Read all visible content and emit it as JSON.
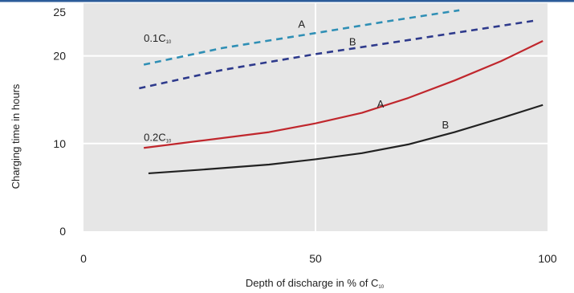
{
  "chart_data": {
    "type": "line",
    "xlabel": "Depth of discharge in % of C₁₀",
    "xlabel_main": "Depth of discharge in % of C",
    "xlabel_sub": "10",
    "ylabel": "Charging time in hours",
    "xlim": [
      0,
      100
    ],
    "ylim": [
      0,
      25
    ],
    "x_ticks": [
      0,
      50,
      100
    ],
    "y_ticks": [
      0,
      10,
      20,
      25
    ],
    "grid": true,
    "series": [
      {
        "id": "s01A",
        "group": "0.1C₁₀",
        "curve": "A",
        "style": "dashed",
        "color": "#2f8fb5",
        "points": [
          [
            13,
            19.0
          ],
          [
            30,
            20.9
          ],
          [
            50,
            22.6
          ],
          [
            65,
            23.9
          ],
          [
            81,
            25.2
          ]
        ]
      },
      {
        "id": "s01B",
        "group": "0.1C₁₀",
        "curve": "B",
        "style": "dashed",
        "color": "#2e3a8c",
        "points": [
          [
            12,
            16.3
          ],
          [
            30,
            18.4
          ],
          [
            50,
            20.2
          ],
          [
            70,
            21.8
          ],
          [
            97,
            24.0
          ]
        ]
      },
      {
        "id": "s02A",
        "group": "0.2C₁₀",
        "curve": "A",
        "style": "solid",
        "color": "#c0272d",
        "points": [
          [
            13,
            9.5
          ],
          [
            25,
            10.3
          ],
          [
            40,
            11.3
          ],
          [
            50,
            12.3
          ],
          [
            60,
            13.5
          ],
          [
            70,
            15.2
          ],
          [
            80,
            17.2
          ],
          [
            90,
            19.4
          ],
          [
            99,
            21.7
          ]
        ]
      },
      {
        "id": "s02B",
        "group": "0.2C₁₀",
        "curve": "B",
        "style": "solid",
        "color": "#222222",
        "points": [
          [
            14,
            6.6
          ],
          [
            25,
            7.0
          ],
          [
            40,
            7.6
          ],
          [
            50,
            8.2
          ],
          [
            60,
            8.9
          ],
          [
            70,
            9.9
          ],
          [
            80,
            11.3
          ],
          [
            90,
            12.9
          ],
          [
            99,
            14.4
          ]
        ]
      }
    ],
    "annotations": [
      {
        "id": "lblA1",
        "text": "A",
        "x": 47,
        "y": 23.2
      },
      {
        "id": "lblB1",
        "text": "B",
        "x": 58,
        "y": 21.2
      },
      {
        "id": "lblA2",
        "text": "A",
        "x": 64,
        "y": 14.1
      },
      {
        "id": "lblB2",
        "text": "B",
        "x": 78,
        "y": 11.7
      }
    ],
    "group_labels": [
      {
        "id": "g01",
        "main": "0.1C",
        "sub": "10",
        "x": 13,
        "y": 21.6
      },
      {
        "id": "g02",
        "main": "0.2C",
        "sub": "10",
        "x": 13,
        "y": 10.3
      }
    ]
  },
  "colors": {
    "plot_background": "#e6e6e6",
    "gridline": "#ffffff",
    "top_border": "#2c5c9a"
  }
}
